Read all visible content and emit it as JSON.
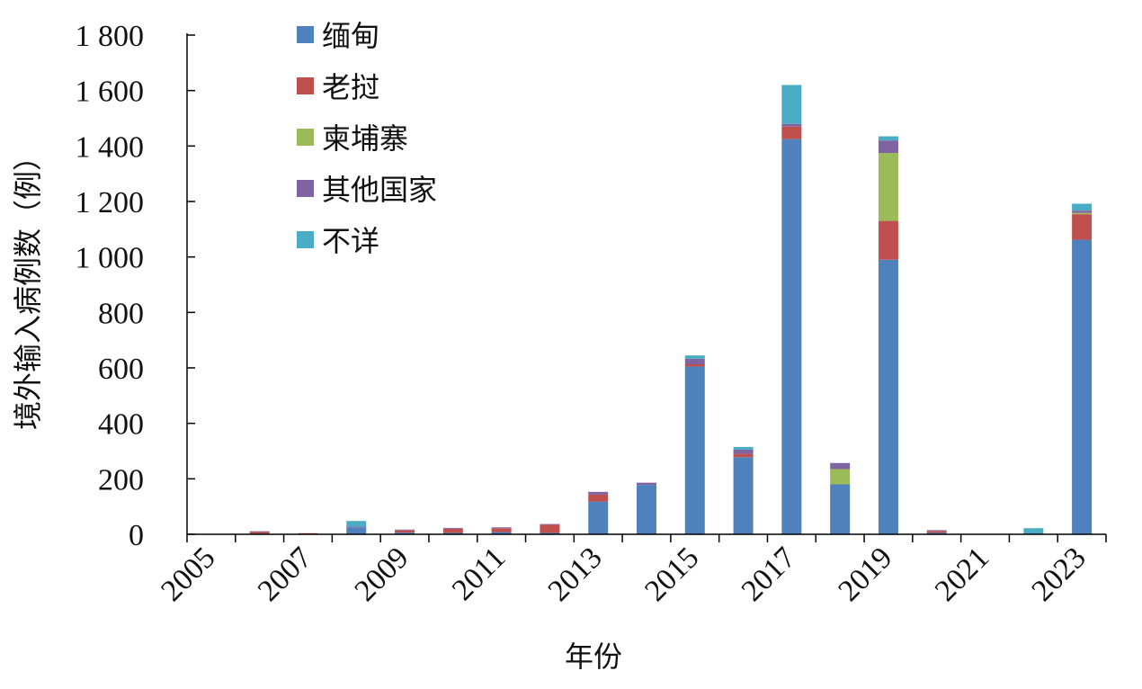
{
  "chart_data": {
    "type": "bar",
    "stacked": true,
    "xlabel": "年份",
    "ylabel": "境外输入病例数（例）",
    "ylim": [
      0,
      1800
    ],
    "yticks": [
      0,
      200,
      400,
      600,
      800,
      1000,
      1200,
      1400,
      1600,
      1800
    ],
    "ytick_labels": [
      "0",
      "200",
      "400",
      "600",
      "800",
      "1 000",
      "1 200",
      "1 400",
      "1 600",
      "1 800"
    ],
    "categories": [
      "2005",
      "2006",
      "2007",
      "2008",
      "2009",
      "2010",
      "2011",
      "2012",
      "2013",
      "2014",
      "2015",
      "2016",
      "2017",
      "2018",
      "2019",
      "2020",
      "2021",
      "2022",
      "2023"
    ],
    "xtick_labels": [
      "2005",
      "2007",
      "2009",
      "2011",
      "2013",
      "2015",
      "2017",
      "2019",
      "2021",
      "2023"
    ],
    "legend_position": "top-left",
    "grid": false,
    "series": [
      {
        "name": "缅甸",
        "color": "#4F81BD",
        "values": [
          0,
          3,
          2,
          25,
          6,
          5,
          8,
          5,
          118,
          178,
          605,
          278,
          1425,
          180,
          990,
          5,
          0,
          0,
          1062
        ]
      },
      {
        "name": "老挝",
        "color": "#C0504D",
        "values": [
          0,
          6,
          2,
          0,
          8,
          15,
          14,
          30,
          25,
          0,
          8,
          12,
          45,
          0,
          140,
          7,
          0,
          0,
          92
        ]
      },
      {
        "name": "柬埔寨",
        "color": "#9BBB59",
        "values": [
          0,
          0,
          0,
          0,
          0,
          0,
          0,
          0,
          0,
          0,
          0,
          0,
          0,
          55,
          245,
          0,
          0,
          0,
          5
        ]
      },
      {
        "name": "其他国家",
        "color": "#8064A2",
        "values": [
          0,
          2,
          0,
          3,
          3,
          3,
          3,
          2,
          10,
          8,
          20,
          15,
          10,
          22,
          45,
          3,
          0,
          0,
          8
        ]
      },
      {
        "name": "不详",
        "color": "#4BACC6",
        "values": [
          0,
          0,
          0,
          20,
          0,
          0,
          0,
          0,
          0,
          0,
          12,
          10,
          140,
          0,
          15,
          0,
          0,
          22,
          25
        ]
      }
    ]
  }
}
